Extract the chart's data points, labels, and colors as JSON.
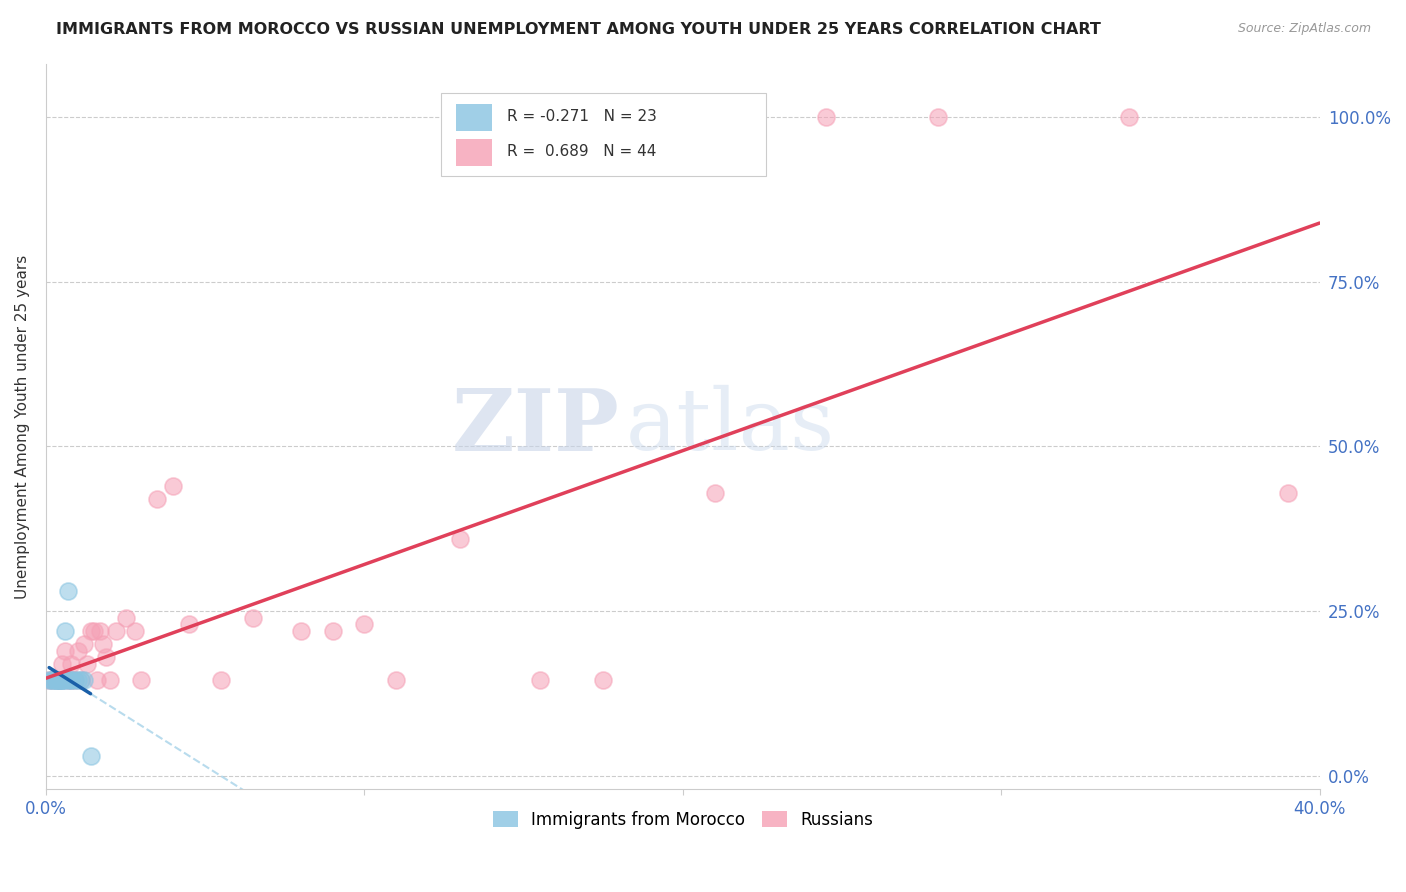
{
  "title": "IMMIGRANTS FROM MOROCCO VS RUSSIAN UNEMPLOYMENT AMONG YOUTH UNDER 25 YEARS CORRELATION CHART",
  "source": "Source: ZipAtlas.com",
  "ylabel": "Unemployment Among Youth under 25 years",
  "legend_label1": "Immigrants from Morocco",
  "legend_label2": "Russians",
  "r1": "-0.271",
  "n1": "23",
  "r2": "0.689",
  "n2": "44",
  "xlim": [
    0.0,
    0.4
  ],
  "ylim": [
    -0.02,
    1.08
  ],
  "yticks": [
    0.0,
    0.25,
    0.5,
    0.75,
    1.0
  ],
  "ytick_labels": [
    "0.0%",
    "25.0%",
    "50.0%",
    "75.0%",
    "100.0%"
  ],
  "xticks": [
    0.0,
    0.1,
    0.2,
    0.3,
    0.4
  ],
  "xtick_labels": [
    "0.0%",
    "",
    "",
    "",
    "40.0%"
  ],
  "color_blue": "#89c4e1",
  "color_pink": "#f5a0b5",
  "color_trendline_blue": "#1a5fa8",
  "color_trendline_pink": "#e0405a",
  "color_trendline_blue_dash": "#89c4e1",
  "background": "#ffffff",
  "watermark_zip": "ZIP",
  "watermark_atlas": "atlas",
  "morocco_x": [
    0.001,
    0.002,
    0.002,
    0.003,
    0.003,
    0.003,
    0.004,
    0.004,
    0.004,
    0.005,
    0.005,
    0.005,
    0.006,
    0.006,
    0.007,
    0.007,
    0.008,
    0.008,
    0.009,
    0.01,
    0.011,
    0.012,
    0.014
  ],
  "morocco_y": [
    0.145,
    0.145,
    0.145,
    0.145,
    0.145,
    0.145,
    0.145,
    0.145,
    0.145,
    0.145,
    0.145,
    0.145,
    0.145,
    0.22,
    0.145,
    0.28,
    0.145,
    0.145,
    0.145,
    0.145,
    0.145,
    0.145,
    0.03
  ],
  "russian_x": [
    0.001,
    0.002,
    0.003,
    0.004,
    0.004,
    0.005,
    0.005,
    0.006,
    0.007,
    0.008,
    0.008,
    0.009,
    0.01,
    0.011,
    0.012,
    0.013,
    0.014,
    0.015,
    0.016,
    0.017,
    0.018,
    0.019,
    0.02,
    0.022,
    0.025,
    0.028,
    0.03,
    0.035,
    0.04,
    0.045,
    0.055,
    0.065,
    0.08,
    0.09,
    0.1,
    0.11,
    0.13,
    0.155,
    0.175,
    0.21,
    0.245,
    0.28,
    0.34,
    0.39
  ],
  "russian_y": [
    0.145,
    0.145,
    0.145,
    0.145,
    0.145,
    0.17,
    0.145,
    0.19,
    0.145,
    0.145,
    0.17,
    0.145,
    0.19,
    0.145,
    0.2,
    0.17,
    0.22,
    0.22,
    0.145,
    0.22,
    0.2,
    0.18,
    0.145,
    0.22,
    0.24,
    0.22,
    0.145,
    0.42,
    0.44,
    0.23,
    0.145,
    0.24,
    0.22,
    0.22,
    0.23,
    0.145,
    0.36,
    0.145,
    0.145,
    0.43,
    1.0,
    1.0,
    1.0,
    0.43
  ]
}
